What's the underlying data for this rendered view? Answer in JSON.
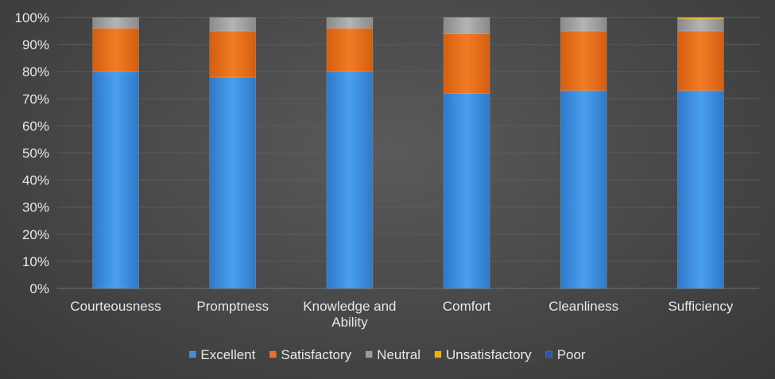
{
  "chart_data": {
    "type": "bar",
    "stacked": true,
    "percent_stacked": true,
    "categories": [
      "Courteousness",
      "Promptness",
      "Knowledge and Ability",
      "Comfort",
      "Cleanliness",
      "Sufficiency"
    ],
    "category_lines": [
      [
        "Courteousness"
      ],
      [
        "Promptness"
      ],
      [
        "Knowledge and",
        "Ability"
      ],
      [
        "Comfort"
      ],
      [
        "Cleanliness"
      ],
      [
        "Sufficiency"
      ]
    ],
    "series": [
      {
        "name": "Excellent",
        "values": [
          80,
          78,
          80,
          72,
          73,
          73
        ],
        "color": "#3d8fdc"
      },
      {
        "name": "Satisfactory",
        "values": [
          16,
          17,
          16,
          22,
          22,
          22
        ],
        "color": "#e8701e"
      },
      {
        "name": "Neutral",
        "values": [
          4,
          5,
          4,
          6,
          5,
          4.5
        ],
        "color": "#9a9a9a"
      },
      {
        "name": "Unsatisfactory",
        "values": [
          0,
          0,
          0,
          0,
          0,
          0.5
        ],
        "color": "#e8b400"
      },
      {
        "name": "Poor",
        "values": [
          0,
          0,
          0,
          0,
          0,
          0
        ],
        "color": "#2a56b0"
      }
    ],
    "ylim": [
      0,
      100
    ],
    "y_ticks": [
      "0%",
      "10%",
      "20%",
      "30%",
      "40%",
      "50%",
      "60%",
      "70%",
      "80%",
      "90%",
      "100%"
    ],
    "grid": true,
    "legend_position": "bottom",
    "title": "",
    "xlabel": "",
    "ylabel": ""
  }
}
